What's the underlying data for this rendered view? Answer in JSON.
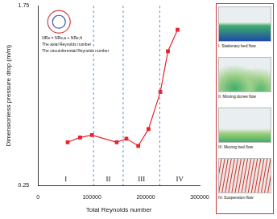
{
  "chart_data": {
    "type": "line",
    "x_label": "Total Reynolds number",
    "y_label": "Dimensionless pressure drop (m/m)",
    "x": [
      55000,
      78000,
      100000,
      146000,
      164000,
      186000,
      205000,
      227000,
      241000,
      259000
    ],
    "values": [
      0.61,
      0.65,
      0.67,
      0.61,
      0.64,
      0.58,
      0.72,
      1.03,
      1.37,
      1.55
    ],
    "color": "#e8232a",
    "marker": "square",
    "xlim": [
      0,
      300000
    ],
    "xticks": [
      0,
      100000,
      200000,
      300000
    ],
    "ylim": [
      0.25,
      1.75
    ],
    "yticks": [
      0.25,
      1.75
    ],
    "grid": false,
    "regions": {
      "labels": [
        "I",
        "II",
        "III",
        "IV"
      ],
      "boundaries": [
        103000,
        158000,
        226000
      ]
    },
    "inset": {
      "equation": "NRe = NRe,a + NRe,θ",
      "labels": [
        "The axial Reynolds number",
        "The circumferential Reynolds number"
      ]
    }
  },
  "flow_panel": {
    "items": [
      "I. Stationary bed flow",
      "II. Moving dunes flow",
      "III. Moving bed flow",
      "IV. Suspension flow"
    ]
  }
}
